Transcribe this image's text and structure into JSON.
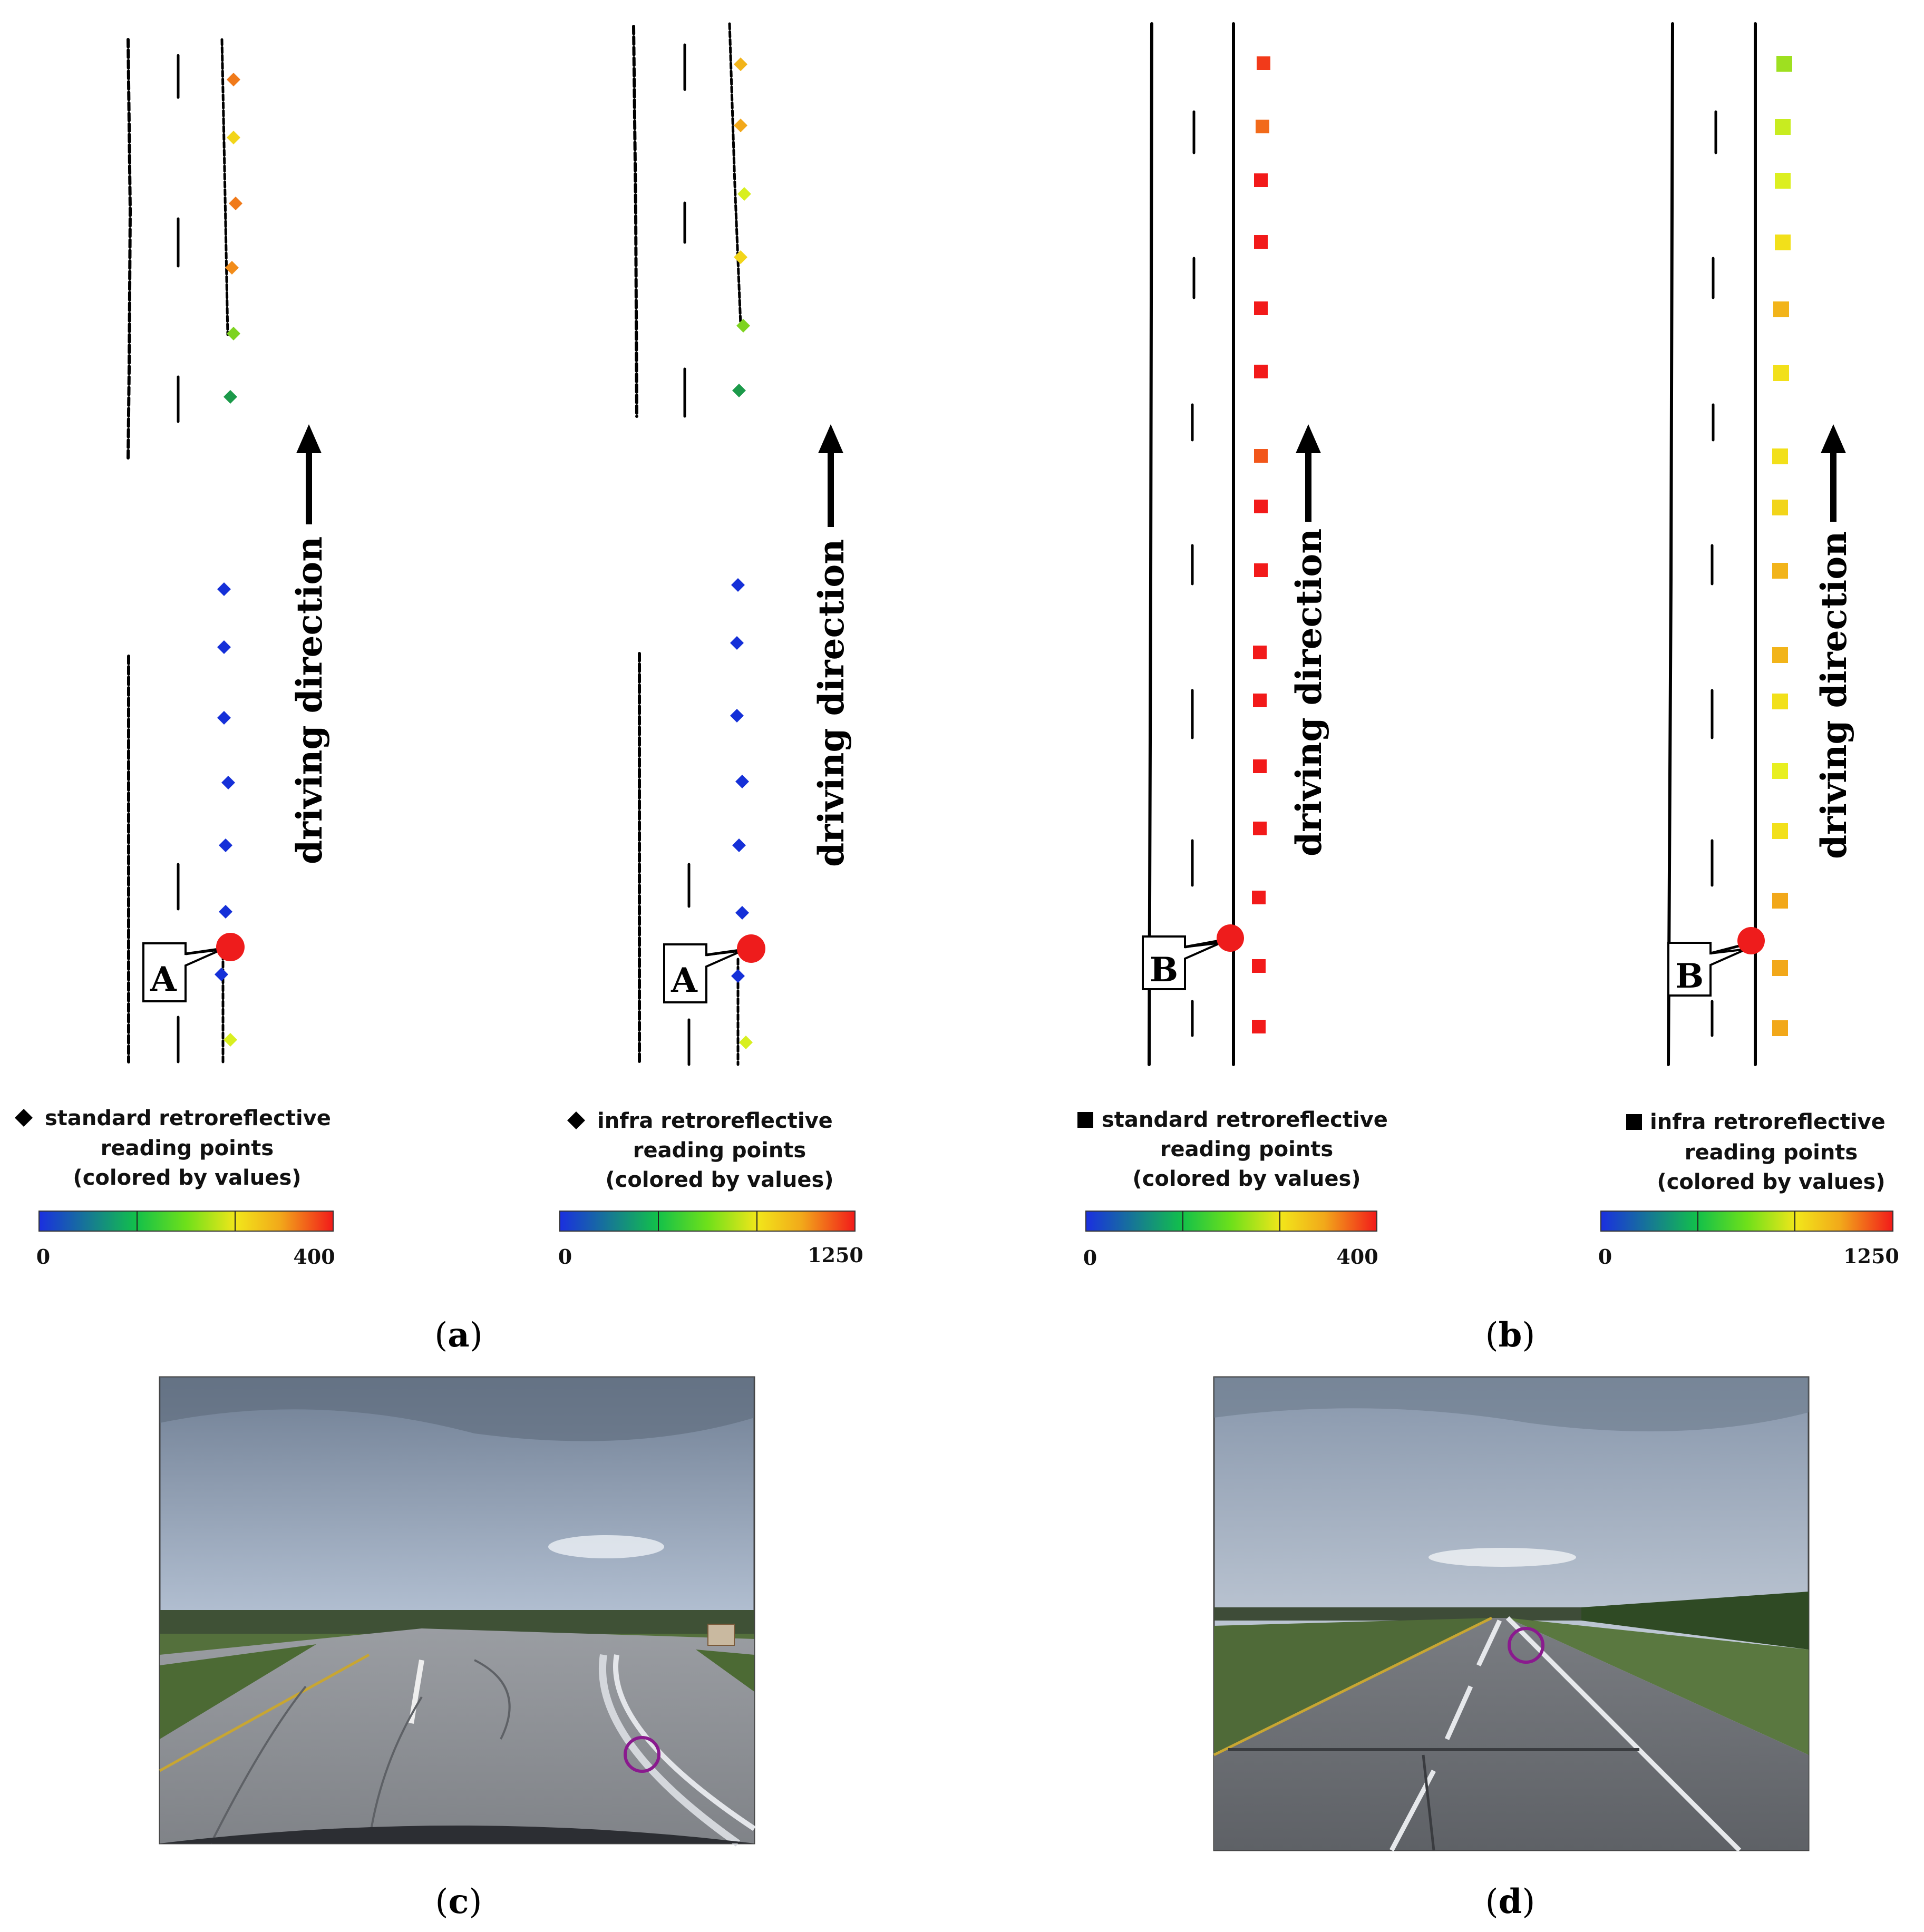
{
  "panels": [
    {
      "id": "a-standard",
      "marker_shape": "diamond",
      "legend_lines": [
        "standard retroreflective",
        "reading points",
        "(colored by values)"
      ],
      "scale_min": "0",
      "scale_max": "400",
      "point_callout": "A",
      "direction_label": "driving direction",
      "point_colors": [
        "#f07a1a",
        "#f2d51a",
        "#f07a1a",
        "#f28c1a",
        "#7ed320",
        "#1c9a4a",
        "#1530d8",
        "#1530d8",
        "#1530d8",
        "#1530d8",
        "#1530d8",
        "#1530d8",
        "#1530d8",
        "#d8ef20"
      ]
    },
    {
      "id": "a-infra",
      "marker_shape": "diamond",
      "legend_lines": [
        "infra retroreflective",
        "reading points",
        "(colored by values)"
      ],
      "scale_min": "0",
      "scale_max": "1250",
      "point_callout": "A",
      "direction_label": "driving direction",
      "point_colors": [
        "#f2b41a",
        "#f2a81a",
        "#d8ef20",
        "#f2d51a",
        "#7ed320",
        "#1c9a4a",
        "#1530d8",
        "#1530d8",
        "#1530d8",
        "#1530d8",
        "#1530d8",
        "#1530d8",
        "#1530d8",
        "#d8ef20"
      ]
    },
    {
      "id": "b-standard",
      "marker_shape": "square",
      "legend_lines": [
        "standard retroreflective",
        "reading points",
        "(colored by values)"
      ],
      "scale_min": "0",
      "scale_max": "400",
      "point_callout": "B",
      "direction_label": "driving direction",
      "point_colors": [
        "#f23a1a",
        "#f26a1a",
        "#f21a1a",
        "#f21a1a",
        "#f21a1a",
        "#f21a1a",
        "#f2561a",
        "#f21a1a",
        "#f21a1a",
        "#f21a1a",
        "#f21a1a",
        "#f21a1a",
        "#f21a1a",
        "#f21a1a",
        "#f21a1a",
        "#f21a1a"
      ]
    },
    {
      "id": "b-infra",
      "marker_shape": "square",
      "legend_lines": [
        "infra retroreflective",
        "reading points",
        "(colored by values)"
      ],
      "scale_min": "0",
      "scale_max": "1250",
      "point_callout": "B",
      "direction_label": "driving direction",
      "point_colors": [
        "#9ee020",
        "#c8ec20",
        "#dcef20",
        "#f2e01a",
        "#f2b41a",
        "#f2e01a",
        "#f2e01a",
        "#f2d51a",
        "#f2b41a",
        "#f2b41a",
        "#f2e01a",
        "#e8ef20",
        "#f2e01a",
        "#f2a81a",
        "#f2a81a",
        "#f2a81a"
      ]
    }
  ],
  "colors": {
    "scale_stops": [
      "#1a2fe0",
      "#12c04a",
      "#6ee01a",
      "#f2e61a",
      "#f2a81a",
      "#f21a1a"
    ],
    "callout_point": "#ee1c1c",
    "photo_circle": "#8a1a8e"
  },
  "photos": [
    {
      "id": "c",
      "caption_letter": "c"
    },
    {
      "id": "d",
      "caption_letter": "d"
    }
  ],
  "captions": [
    "a",
    "b",
    "c",
    "d"
  ]
}
